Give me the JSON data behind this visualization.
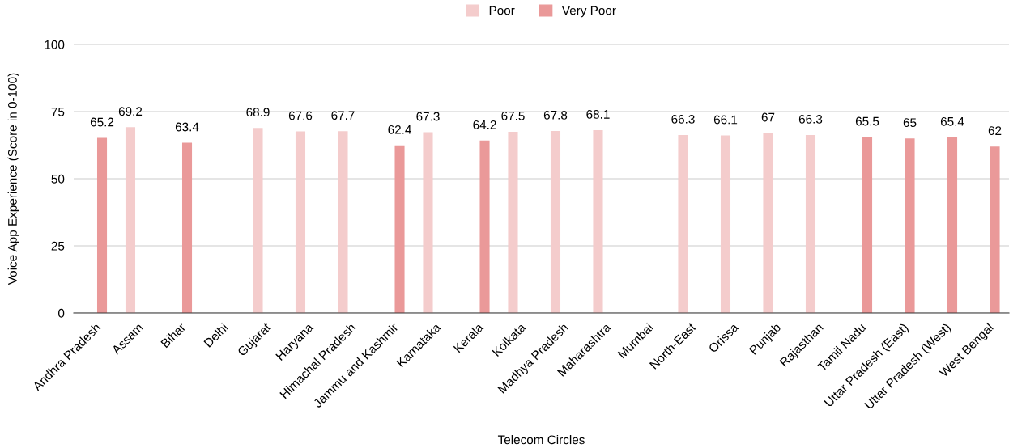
{
  "chart_data": {
    "type": "bar",
    "xlabel": "Telecom Circles",
    "ylabel": "Voice App Experience (Score in 0-100)",
    "categories": [
      "Andhra Pradesh",
      "Assam",
      "Bihar",
      "Delhi",
      "Gujarat",
      "Haryana",
      "Himachal Pradesh",
      "Jammu and Kashmir",
      "Karnataka",
      "Kerala",
      "Kolkata",
      "Madhya Pradesh",
      "Maharashtra",
      "Mumbai",
      "North-East",
      "Orissa",
      "Punjab",
      "Rajasthan",
      "Tamil Nadu",
      "Uttar Pradesh (East)",
      "Uttar Pradesh (West)",
      "West Bengal"
    ],
    "series": [
      {
        "name": "Poor",
        "color": "#f4cccc",
        "values": [
          null,
          69.2,
          null,
          null,
          68.9,
          67.6,
          67.7,
          null,
          67.3,
          null,
          67.5,
          67.8,
          68.1,
          null,
          66.3,
          66.1,
          67,
          66.3,
          null,
          null,
          null,
          null
        ]
      },
      {
        "name": "Very Poor",
        "color": "#ea9999",
        "values": [
          65.2,
          null,
          63.4,
          null,
          null,
          null,
          null,
          62.4,
          null,
          64.2,
          null,
          null,
          null,
          null,
          null,
          null,
          null,
          null,
          65.5,
          65,
          65.4,
          62
        ]
      }
    ],
    "ylim": [
      0,
      100
    ],
    "yticks": [
      0,
      25,
      50,
      75,
      100
    ],
    "grid": "y",
    "legend": "top",
    "data_labels": true
  }
}
